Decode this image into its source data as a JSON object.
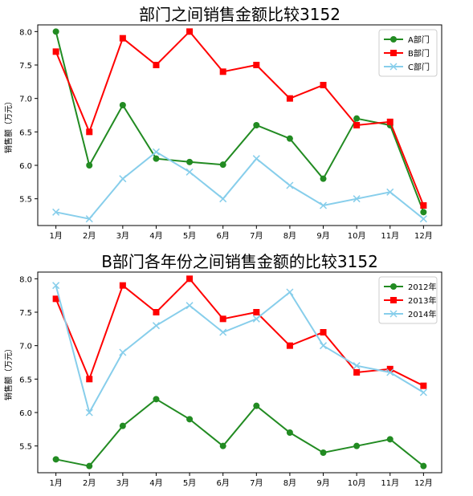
{
  "chart_data": [
    {
      "type": "line",
      "title": "部门之间销售金额比较3152",
      "xlabel": "",
      "ylabel": "销售额（万元）",
      "categories": [
        "1月",
        "2月",
        "3月",
        "4月",
        "5月",
        "6月",
        "7月",
        "8月",
        "9月",
        "10月",
        "11月",
        "12月"
      ],
      "ylim": [
        5.1,
        8.1
      ],
      "yticks": [
        "5.5",
        "6.0",
        "6.5",
        "7.0",
        "7.5",
        "8.0"
      ],
      "grid": false,
      "legend": "top-right",
      "series": [
        {
          "name": "A部门",
          "marker": "circle",
          "color": "#228B22",
          "values": [
            8.0,
            6.0,
            6.9,
            6.1,
            6.05,
            6.01,
            6.6,
            6.4,
            5.8,
            6.7,
            6.6,
            5.3
          ]
        },
        {
          "name": "B部门",
          "marker": "square",
          "color": "#FF0000",
          "values": [
            7.7,
            6.5,
            7.9,
            7.5,
            8.0,
            7.4,
            7.5,
            7.0,
            7.2,
            6.6,
            6.65,
            5.4
          ]
        },
        {
          "name": "C部门",
          "marker": "x",
          "color": "#87CEEB",
          "values": [
            5.3,
            5.2,
            5.8,
            6.2,
            5.9,
            5.5,
            6.1,
            5.7,
            5.4,
            5.5,
            5.6,
            5.2
          ]
        }
      ]
    },
    {
      "type": "line",
      "title": "B部门各年份之间销售金额的比较3152",
      "xlabel": "",
      "ylabel": "销售额（万元）",
      "categories": [
        "1月",
        "2月",
        "3月",
        "4月",
        "5月",
        "6月",
        "7月",
        "8月",
        "9月",
        "10月",
        "11月",
        "12月"
      ],
      "ylim": [
        5.1,
        8.1
      ],
      "yticks": [
        "5.5",
        "6.0",
        "6.5",
        "7.0",
        "7.5",
        "8.0"
      ],
      "grid": false,
      "legend": "top-right",
      "series": [
        {
          "name": "2012年",
          "marker": "circle",
          "color": "#228B22",
          "values": [
            5.3,
            5.2,
            5.8,
            6.2,
            5.9,
            5.5,
            6.1,
            5.7,
            5.4,
            5.5,
            5.6,
            5.2
          ]
        },
        {
          "name": "2013年",
          "marker": "square",
          "color": "#FF0000",
          "values": [
            7.7,
            6.5,
            7.9,
            7.5,
            8.0,
            7.4,
            7.5,
            7.0,
            7.2,
            6.6,
            6.65,
            6.4
          ]
        },
        {
          "name": "2014年",
          "marker": "x",
          "color": "#87CEEB",
          "values": [
            7.9,
            6.0,
            6.9,
            7.3,
            7.6,
            7.2,
            7.4,
            7.8,
            7.0,
            6.7,
            6.6,
            6.3
          ]
        }
      ]
    }
  ]
}
